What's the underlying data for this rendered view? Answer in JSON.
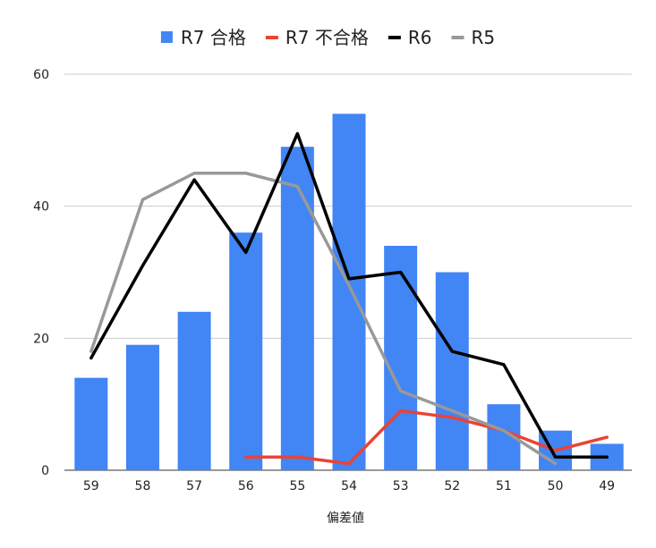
{
  "chart_data": {
    "type": "bar",
    "categories": [
      "59",
      "58",
      "57",
      "56",
      "55",
      "54",
      "53",
      "52",
      "51",
      "50",
      "49"
    ],
    "series": [
      {
        "name": "R7 合格",
        "type": "bar",
        "color": "#4285f4",
        "values": [
          14,
          19,
          24,
          36,
          49,
          54,
          34,
          30,
          10,
          6,
          4
        ]
      },
      {
        "name": "R7 不合格",
        "type": "line",
        "color": "#ea4335",
        "values": [
          null,
          null,
          null,
          2,
          2,
          1,
          9,
          8,
          6,
          3,
          5
        ]
      },
      {
        "name": "R6",
        "type": "line",
        "color": "#000000",
        "values": [
          17,
          31,
          44,
          33,
          51,
          29,
          30,
          18,
          16,
          2,
          2
        ]
      },
      {
        "name": "R5",
        "type": "line",
        "color": "#999999",
        "values": [
          18,
          41,
          45,
          45,
          43,
          28,
          12,
          9,
          6,
          1,
          null
        ]
      }
    ],
    "title": "",
    "xlabel": "偏差値",
    "ylabel": "",
    "ylim": [
      0,
      60
    ],
    "yticks": [
      "0",
      "20",
      "40",
      "60"
    ],
    "grid": true,
    "legend_position": "top"
  }
}
